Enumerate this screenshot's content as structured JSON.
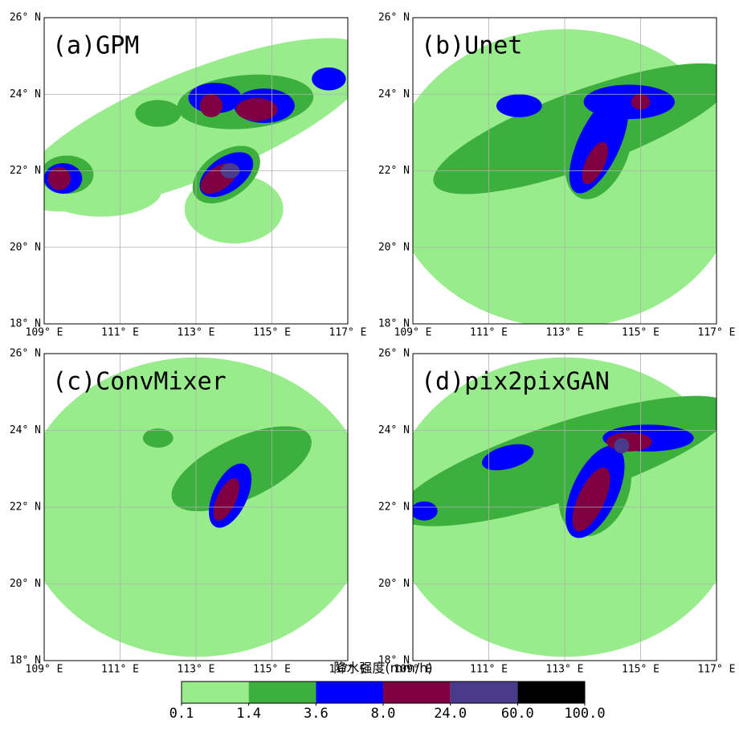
{
  "panels": [
    {
      "title": "(a)GPM"
    },
    {
      "title": "(b)Unet"
    },
    {
      "title": "(c)ConvMixer"
    },
    {
      "title": "(d)pix2pixGAN"
    }
  ],
  "map": {
    "lonlim": [
      109,
      117
    ],
    "latlim": [
      18,
      26
    ],
    "lonticks": [
      {
        "value": 109,
        "label": "109° E"
      },
      {
        "value": 111,
        "label": "111° E"
      },
      {
        "value": 113,
        "label": "113° E"
      },
      {
        "value": 115,
        "label": "115° E"
      },
      {
        "value": 117,
        "label": "117° E"
      }
    ],
    "latticks": [
      {
        "value": 18,
        "label": "18° N"
      },
      {
        "value": 20,
        "label": "20° N"
      },
      {
        "value": 22,
        "label": "22° N"
      },
      {
        "value": 24,
        "label": "24° N"
      },
      {
        "value": 26,
        "label": "26° N"
      }
    ],
    "grid": true
  },
  "colorbar": {
    "title": "降水强度(mm/h)",
    "levels": [
      0.1,
      1.4,
      3.6,
      {
        "value": 8,
        "label": "8.0"
      },
      {
        "value": 24,
        "label": "24.0"
      },
      {
        "value": 60,
        "label": "60.0"
      },
      {
        "value": 100,
        "label": "100.0"
      }
    ],
    "colors": [
      "#98ec8c",
      "#3caf3c",
      "#0000ff",
      "#7f0042",
      "#4a3a8c",
      "#000000"
    ]
  }
}
